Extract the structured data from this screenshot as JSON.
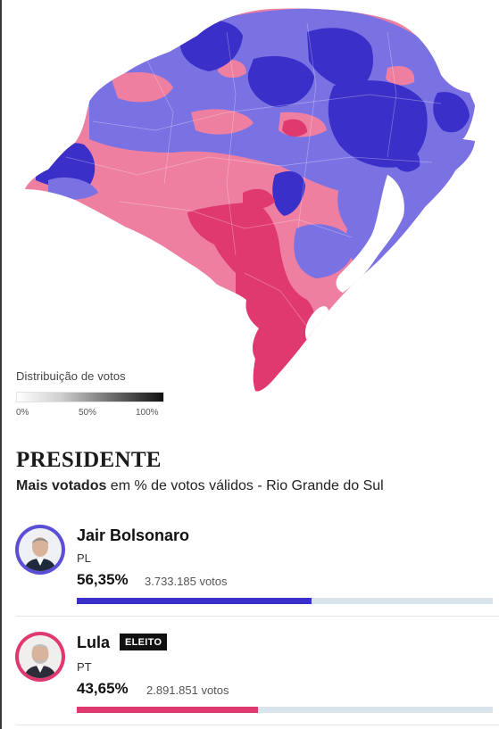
{
  "map": {
    "legend_title": "Distribuição de votos",
    "legend_ticks": [
      "0%",
      "50%",
      "100%"
    ],
    "colors": {
      "bolsonaro_strong": "#3b2fc9",
      "bolsonaro_mid": "#7a72e3",
      "lula_mid": "#ee7fa1",
      "lula_strong": "#e0396f",
      "lagoon": "#ffffff"
    }
  },
  "header": {
    "title": "PRESIDENTE",
    "subtitle_bold": "Mais votados",
    "subtitle_rest": " em % de votos válidos - Rio Grande do Sul"
  },
  "candidates": [
    {
      "name": "Jair Bolsonaro",
      "party": "PL",
      "percent": "56,35%",
      "votes": "3.733.185 votos",
      "share": 0.5635,
      "color": "#3b2fc9",
      "badge": ""
    },
    {
      "name": "Lula",
      "party": "PT",
      "percent": "43,65%",
      "votes": "2.891.851 votos",
      "share": 0.4365,
      "color": "#e0396f",
      "badge": "ELEITO"
    }
  ]
}
